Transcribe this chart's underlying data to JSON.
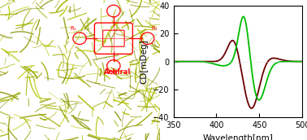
{
  "title": "",
  "ylabel": "CD[mDeg]",
  "xlabel": "Wavelength[nm]",
  "xlim": [
    350,
    500
  ],
  "ylim": [
    -40,
    40
  ],
  "yticks": [
    -40,
    -20,
    0,
    20,
    40
  ],
  "xticks": [
    350,
    400,
    450,
    500
  ],
  "bg_color": "#ffffff",
  "curve1_color": "#6B0000",
  "curve2_color": "#00BB00",
  "afm_bg": "#7A1000",
  "afm_filament": "#BBCC00",
  "figsize": [
    3.78,
    1.72
  ],
  "dpi": 100
}
